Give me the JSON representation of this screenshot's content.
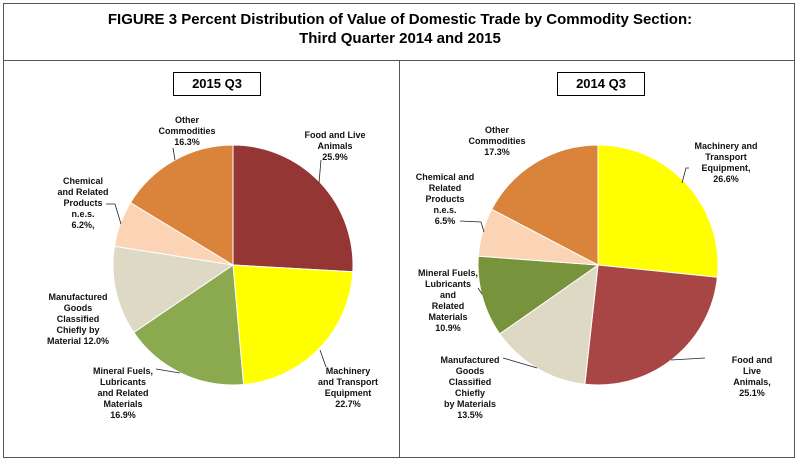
{
  "title": "FIGURE 3  Percent Distribution of Value of Domestic Trade by Commodity Section:\nThird Quarter 2014 and 2015",
  "chart_data": [
    {
      "type": "pie",
      "title": "2015 Q3",
      "start": "top",
      "direction": "clockwise",
      "slices": [
        {
          "name": "Food and Live Animals",
          "value": 25.9,
          "label": "Food and Live\nAnimals\n25.9%",
          "color": "#943634"
        },
        {
          "name": "Machinery and Transport Equipment",
          "value": 22.7,
          "label": "Machinery\nand Transport\nEquipment\n22.7%",
          "color": "#FFFF00"
        },
        {
          "name": "Mineral Fuels, Lubricants and Related Materials",
          "value": 16.9,
          "label": "Mineral Fuels,\nLubricants\nand  Related\nMaterials\n16.9%",
          "color": "#8BA94F"
        },
        {
          "name": "Manufactured Goods Classified Chiefly by Material",
          "value": 12.0,
          "label": "Manufactured\nGoods\nClassified\nChiefly by\nMaterial 12.0%",
          "color": "#DDD9C4"
        },
        {
          "name": "Chemical and Related Products n.e.s.",
          "value": 6.2,
          "label": "Chemical\nand Related\nProducts\nn.e.s.\n6.2%,",
          "color": "#FAD4B4"
        },
        {
          "name": "Other Commodities",
          "value": 16.3,
          "label": "Other\nCommodities\n16.3%",
          "color": "#DA833A"
        }
      ]
    },
    {
      "type": "pie",
      "title": "2014 Q3",
      "start": "top",
      "direction": "clockwise",
      "slices": [
        {
          "name": "Machinery and Transport Equipment",
          "value": 26.6,
          "label": "Machinery and\nTransport\nEquipment,\n26.6%",
          "color": "#FFFF00"
        },
        {
          "name": "Food and Live Animals",
          "value": 25.1,
          "label": "Food and Live\nAnimals,\n25.1%",
          "color": "#A84645"
        },
        {
          "name": "Manufactured Goods Classified Chiefly by Materials",
          "value": 13.5,
          "label": "Manufactured\nGoods\nClassified\nChiefly\nby Materials\n13.5%",
          "color": "#DDD9C4"
        },
        {
          "name": "Mineral Fuels, Lubricants and Related Materials",
          "value": 10.9,
          "label": "Mineral Fuels,\nLubricants\nand\nRelated\nMaterials\n10.9%",
          "color": "#77933C"
        },
        {
          "name": "Chemical and Related Products n.e.s.",
          "value": 6.5,
          "label": "Chemical and\nRelated\nProducts\nn.e.s.\n6.5%",
          "color": "#FAD4B4"
        },
        {
          "name": "Other Commodities",
          "value": 17.3,
          "label": "Other\nCommodities\n17.3%",
          "color": "#DA833A"
        }
      ]
    }
  ]
}
